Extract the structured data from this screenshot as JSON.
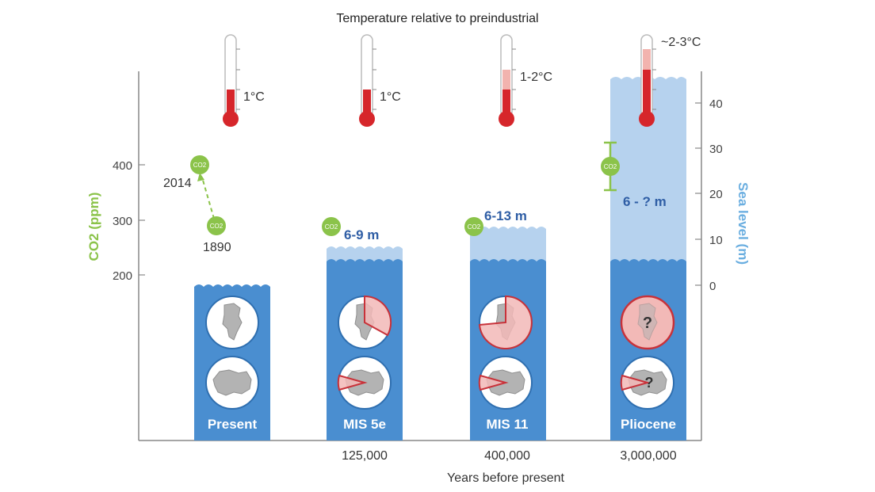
{
  "title": "Temperature relative to preindustrial",
  "x_axis_title": "Years before present",
  "left_axis_title": "CO2 (ppm)",
  "left_axis_ticks": [
    "400",
    "300",
    "200"
  ],
  "right_axis_title": "Sea level (m)",
  "right_axis_ticks": [
    "40",
    "30",
    "20",
    "10",
    "0"
  ],
  "co2_badge_text": "CO2",
  "colors": {
    "sea": "#4a8ed0",
    "sea_light": "#b6d2ee",
    "co2_green": "#8bc34a",
    "sea_label_blue": "#2f5ea5",
    "thermo_red": "#d6262b",
    "thermo_pink": "#f2b3ae",
    "ice_pink": "#f2b9b7",
    "ice_stroke": "#c8323a"
  },
  "present_co2_labels": {
    "from": "1890",
    "to": "2014"
  },
  "periods": [
    {
      "name": "Present",
      "years": "",
      "temperature": "1°C",
      "sea_level": ""
    },
    {
      "name": "MIS 5e",
      "years": "125,000",
      "temperature": "1°C",
      "sea_level": "6-9 m"
    },
    {
      "name": "MIS 11",
      "years": "400,000",
      "temperature": "1-2°C",
      "sea_level": "6-13 m"
    },
    {
      "name": "Pliocene",
      "years": "3,000,000",
      "temperature": "~2-3°C",
      "sea_level": "6 - ? m"
    }
  ],
  "question_mark": "?"
}
